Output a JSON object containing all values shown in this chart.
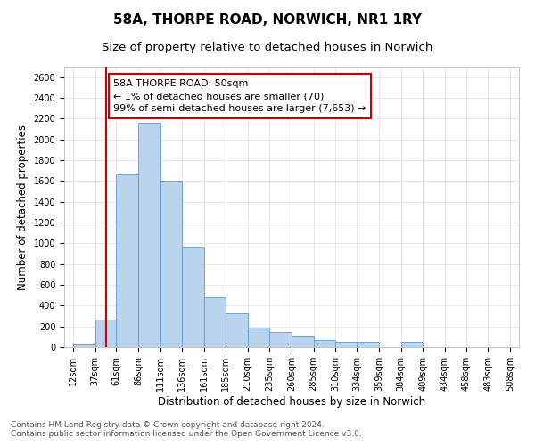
{
  "title": "58A, THORPE ROAD, NORWICH, NR1 1RY",
  "subtitle": "Size of property relative to detached houses in Norwich",
  "xlabel": "Distribution of detached houses by size in Norwich",
  "ylabel": "Number of detached properties",
  "bins": [
    12,
    37,
    61,
    86,
    111,
    136,
    161,
    185,
    210,
    235,
    260,
    285,
    310,
    334,
    359,
    384,
    409,
    434,
    458,
    483,
    508
  ],
  "bin_labels": [
    "12sqm",
    "37sqm",
    "61sqm",
    "86sqm",
    "111sqm",
    "136sqm",
    "161sqm",
    "185sqm",
    "210sqm",
    "235sqm",
    "260sqm",
    "285sqm",
    "310sqm",
    "334sqm",
    "359sqm",
    "384sqm",
    "409sqm",
    "434sqm",
    "458sqm",
    "483sqm",
    "508sqm"
  ],
  "counts": [
    30,
    270,
    1660,
    2160,
    1600,
    960,
    480,
    330,
    190,
    150,
    100,
    70,
    50,
    50,
    0,
    50,
    0,
    0,
    0,
    0,
    30
  ],
  "bar_color": "#bad4ed",
  "bar_edge_color": "#5b9bd5",
  "property_line_x": 50,
  "property_line_color": "#cc0000",
  "annotation_text": "58A THORPE ROAD: 50sqm\n← 1% of detached houses are smaller (70)\n99% of semi-detached houses are larger (7,653) →",
  "annotation_box_color": "#ffffff",
  "annotation_box_edge": "#cc0000",
  "ylim": [
    0,
    2700
  ],
  "yticks": [
    0,
    200,
    400,
    600,
    800,
    1000,
    1200,
    1400,
    1600,
    1800,
    2000,
    2200,
    2400,
    2600
  ],
  "footnote1": "Contains HM Land Registry data © Crown copyright and database right 2024.",
  "footnote2": "Contains public sector information licensed under the Open Government Licence v3.0.",
  "bg_color": "#ffffff",
  "grid_color": "#dddddd",
  "title_fontsize": 11,
  "subtitle_fontsize": 9.5,
  "label_fontsize": 8.5,
  "tick_fontsize": 7,
  "annot_fontsize": 8,
  "footnote_fontsize": 6.5
}
